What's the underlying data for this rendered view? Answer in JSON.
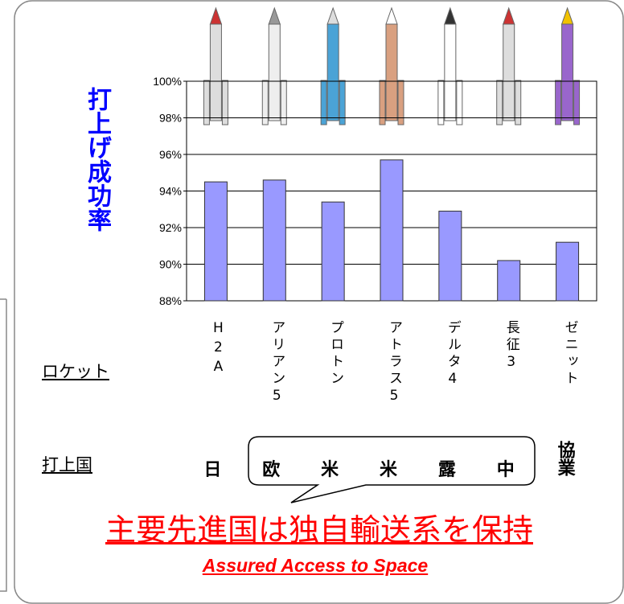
{
  "chart_data": {
    "type": "bar",
    "y_axis_label": "打上げ成功率",
    "categories": [
      "H2A",
      "アリアン5",
      "プロトン",
      "アトラス5",
      "デルタ4",
      "長征3",
      "ゼニット"
    ],
    "values": [
      94.5,
      94.6,
      93.4,
      95.7,
      92.9,
      90.2,
      91.2
    ],
    "color": "#9999ff",
    "ylim": [
      88,
      100
    ],
    "yticks": [
      {
        "value": 88,
        "label": "88%"
      },
      {
        "value": 90,
        "label": "90%"
      },
      {
        "value": 92,
        "label": "92%"
      },
      {
        "value": 94,
        "label": "94%"
      },
      {
        "value": 96,
        "label": "96%"
      },
      {
        "value": 98,
        "label": "98%"
      },
      {
        "value": 100,
        "label": "100%"
      }
    ],
    "grid": true
  },
  "row_labels": {
    "rocket": "ロケット",
    "country": "打上国"
  },
  "countries": [
    "日",
    "欧",
    "米",
    "米",
    "露",
    "中",
    "協業"
  ],
  "headline": "主要先進国は独自輸送系を保持",
  "tagline": "Assured Access to Space"
}
